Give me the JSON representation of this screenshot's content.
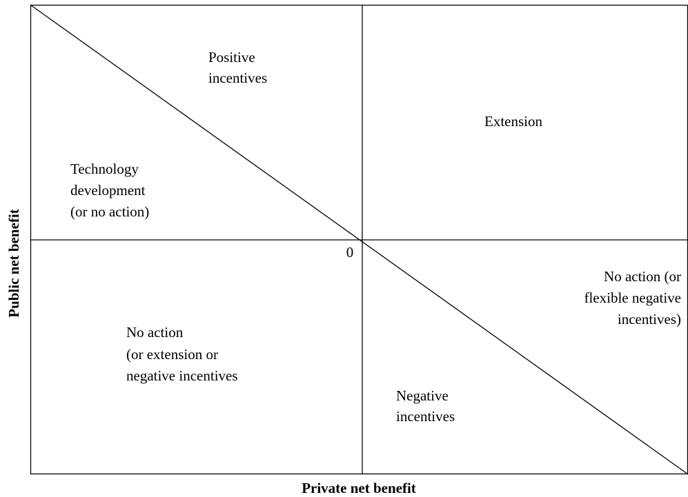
{
  "axes": {
    "x_label": "Private net benefit",
    "y_label": "Public net benefit",
    "origin_label": "0"
  },
  "regions": [
    {
      "lines": [
        "Positive",
        "incentives"
      ]
    },
    {
      "lines": [
        "Extension"
      ]
    },
    {
      "lines": [
        "Technology",
        "development",
        "(or no action)"
      ]
    },
    {
      "lines": [
        "No action (or",
        "flexible negative",
        "incentives)"
      ]
    },
    {
      "lines": [
        "No action",
        "(or extension or",
        "negative incentives"
      ]
    },
    {
      "lines": [
        "Negative",
        "incentives"
      ]
    }
  ]
}
